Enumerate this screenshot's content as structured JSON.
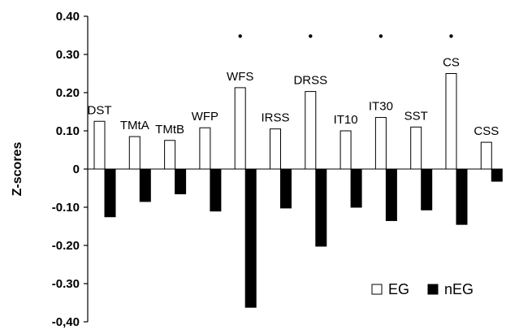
{
  "chart_data": {
    "type": "bar",
    "ylabel": "Z-scores",
    "ylim": [
      -0.4,
      0.4
    ],
    "y_ticks": [
      "0.40",
      "0.30",
      "0.20",
      "0.10",
      "0",
      "-0.10",
      "-0.20",
      "-0.30",
      "-0,40"
    ],
    "categories": [
      "DST",
      "TMtA",
      "TMtB",
      "WFP",
      "WFS",
      "IRSS",
      "DRSS",
      "IT10",
      "IT30",
      "SST",
      "CS",
      "CSS"
    ],
    "series": [
      {
        "name": "EG",
        "values": [
          0.125,
          0.085,
          0.075,
          0.108,
          0.213,
          0.105,
          0.203,
          0.1,
          0.135,
          0.11,
          0.25,
          0.07
        ]
      },
      {
        "name": "nEG",
        "values": [
          -0.125,
          -0.085,
          -0.065,
          -0.11,
          -0.362,
          -0.102,
          -0.202,
          -0.1,
          -0.135,
          -0.107,
          -0.145,
          -0.032
        ]
      }
    ],
    "significance_markers": [
      "",
      "",
      "",
      "",
      "•",
      "",
      "•",
      "",
      "•",
      "",
      "•",
      ""
    ],
    "legend_position": "bottom-right",
    "grid": false
  },
  "colors": {
    "EG": "#ffffff",
    "nEG": "#000000",
    "outline": "#000000"
  }
}
